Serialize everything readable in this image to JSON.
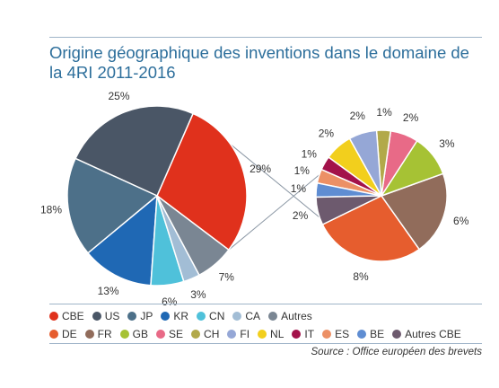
{
  "title": "Origine géographique des inventions dans le domaine de la 4RI 2011-2016",
  "source": "Source : Office européen des brevets",
  "chart_data": [
    {
      "type": "pie",
      "slices": [
        {
          "label": "CBE",
          "value": 29,
          "text": "29%",
          "color": "#e0311c"
        },
        {
          "label": "US",
          "value": 25,
          "text": "25%",
          "color": "#4a5666"
        },
        {
          "label": "JP",
          "value": 18,
          "text": "18%",
          "color": "#4d7089"
        },
        {
          "label": "KR",
          "value": 13,
          "text": "13%",
          "color": "#1f68b4"
        },
        {
          "label": "CN",
          "value": 6,
          "text": "6%",
          "color": "#4fc1da"
        },
        {
          "label": "CA",
          "value": 3,
          "text": "3%",
          "color": "#a2bdd5"
        },
        {
          "label": "Autres",
          "value": 7,
          "text": "7%",
          "color": "#7a8693"
        }
      ]
    },
    {
      "type": "pie",
      "slices": [
        {
          "label": "DE",
          "value": 8,
          "text": "8%",
          "color": "#e65d2e"
        },
        {
          "label": "FR",
          "value": 6,
          "text": "6%",
          "color": "#916c5b"
        },
        {
          "label": "GB",
          "value": 3,
          "text": "3%",
          "color": "#a6c234"
        },
        {
          "label": "SE",
          "value": 2,
          "text": "2%",
          "color": "#e86a87"
        },
        {
          "label": "CH",
          "value": 1,
          "text": "1%",
          "color": "#b2a94a"
        },
        {
          "label": "FI",
          "value": 2,
          "text": "2%",
          "color": "#95a7d6"
        },
        {
          "label": "NL",
          "value": 2,
          "text": "2%",
          "color": "#f2cf1d"
        },
        {
          "label": "IT",
          "value": 1,
          "text": "1%",
          "color": "#a3124a"
        },
        {
          "label": "ES",
          "value": 1,
          "text": "1%",
          "color": "#ec9065"
        },
        {
          "label": "BE",
          "value": 1,
          "text": "1%",
          "color": "#5f8dd2"
        },
        {
          "label": "Autres CBE",
          "value": 2,
          "text": "2%",
          "color": "#6d5a6e"
        }
      ]
    }
  ],
  "legend": {
    "row1": [
      {
        "label": "CBE",
        "color": "#e0311c"
      },
      {
        "label": "US",
        "color": "#4a5666"
      },
      {
        "label": "JP",
        "color": "#4d7089"
      },
      {
        "label": "KR",
        "color": "#1f68b4"
      },
      {
        "label": "CN",
        "color": "#4fc1da"
      },
      {
        "label": "CA",
        "color": "#a2bdd5"
      },
      {
        "label": "Autres",
        "color": "#7a8693"
      }
    ],
    "row2": [
      {
        "label": "DE",
        "color": "#e65d2e"
      },
      {
        "label": "FR",
        "color": "#916c5b"
      },
      {
        "label": "GB",
        "color": "#a6c234"
      },
      {
        "label": "SE",
        "color": "#e86a87"
      },
      {
        "label": "CH",
        "color": "#b2a94a"
      },
      {
        "label": "FI",
        "color": "#95a7d6"
      },
      {
        "label": "NL",
        "color": "#f2cf1d"
      },
      {
        "label": "IT",
        "color": "#a3124a"
      },
      {
        "label": "ES",
        "color": "#ec9065"
      },
      {
        "label": "BE",
        "color": "#5f8dd2"
      },
      {
        "label": "Autres CBE",
        "color": "#6d5a6e"
      }
    ]
  }
}
